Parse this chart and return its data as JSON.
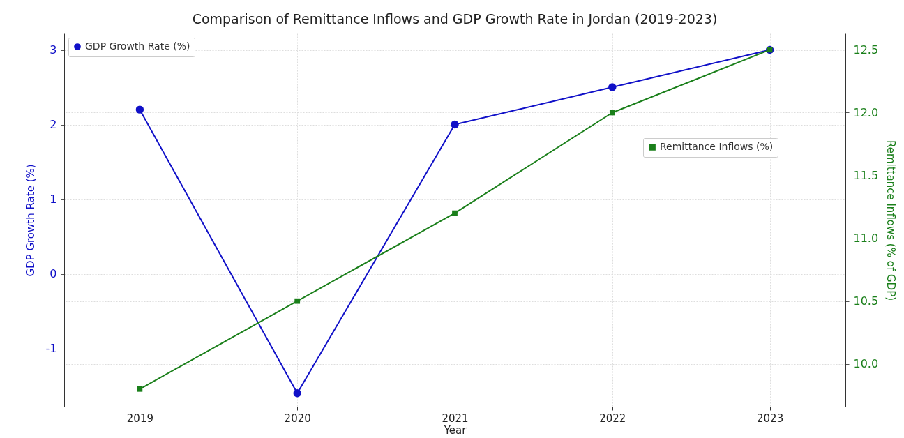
{
  "chart_data": {
    "type": "line",
    "title": "Comparison of Remittance Inflows and GDP Growth Rate in Jordan (2019-2023)",
    "xlabel": "Year",
    "ylabel": "GDP Growth Rate (%)",
    "y2label": "Remittance Inflows (% of GDP)",
    "categories": [
      "2019",
      "2020",
      "2021",
      "2022",
      "2023"
    ],
    "series": [
      {
        "name": "GDP Growth Rate (%)",
        "color": "#1010c8",
        "marker": "circle",
        "values": [
          2.2,
          -1.6,
          2.0,
          2.5,
          3.0
        ]
      },
      {
        "name": "Remittance Inflows (%)",
        "color": "#1a7f1a",
        "marker": "square",
        "axis": "y2",
        "values": [
          9.8,
          10.5,
          11.2,
          12.0,
          12.5
        ]
      }
    ],
    "ylim": [
      -1.78,
      3.22
    ],
    "yticks": [
      -1,
      0,
      1,
      2,
      3
    ],
    "y2lim": [
      9.66,
      12.63
    ],
    "y2ticks": [
      {
        "value": 10,
        "label": "10.0"
      },
      {
        "value": 10.5,
        "label": "10.5"
      },
      {
        "value": 11,
        "label": "11.0"
      },
      {
        "value": 11.5,
        "label": "11.5"
      },
      {
        "value": 12,
        "label": "12.0"
      },
      {
        "value": 12.5,
        "label": "12.5"
      }
    ],
    "grid": true,
    "legend": "top"
  }
}
